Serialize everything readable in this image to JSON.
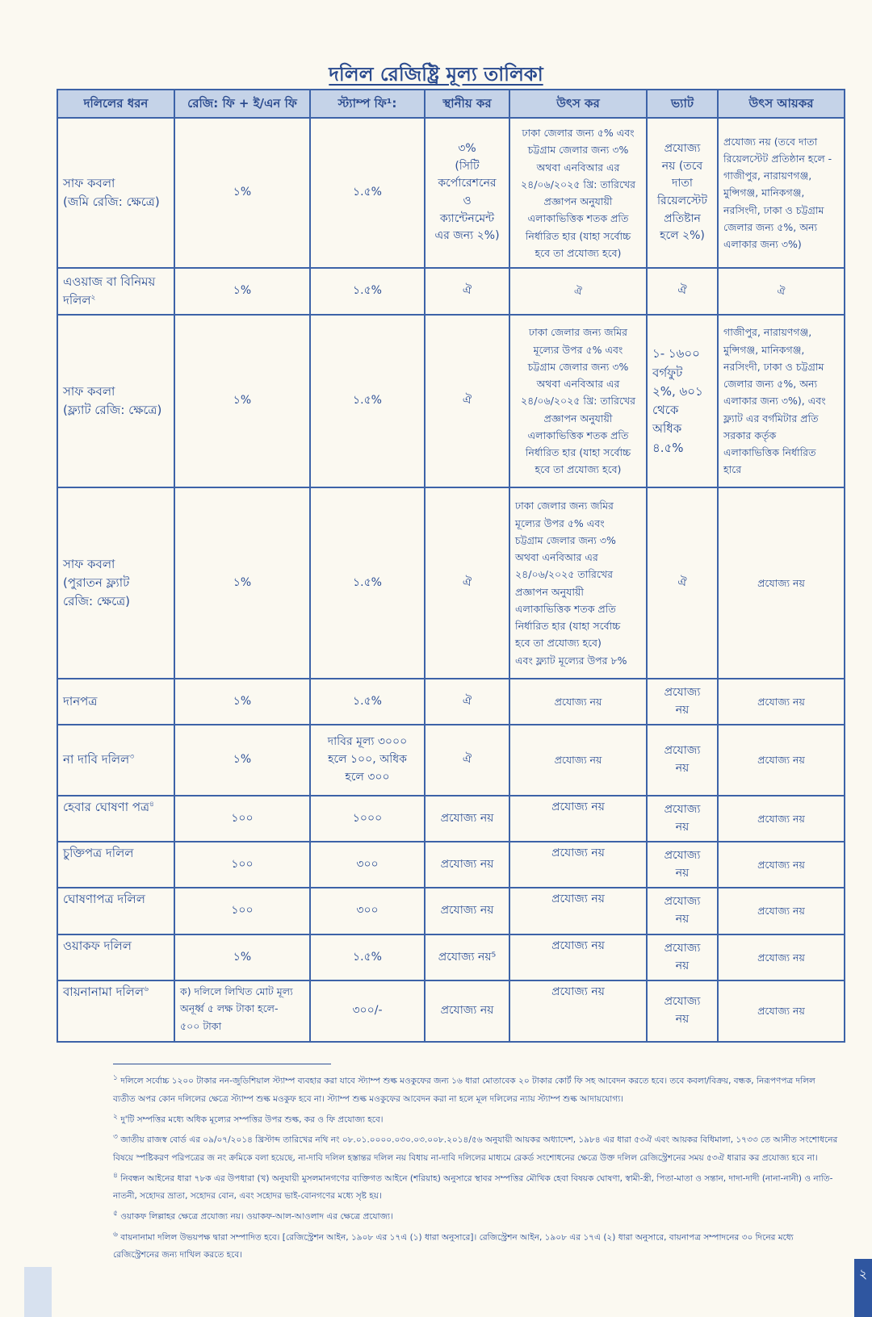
{
  "title": "দলিল রেজিষ্ট্রি মূল্য তালিকা",
  "columns": [
    "দলিলের ধরন",
    "রেজি: ফি + ই/এন ফি",
    "স্ট্যাম্প ফি¹:",
    "স্থানীয় কর",
    "উৎস কর",
    "ভ্যাট",
    "উৎস আয়কর"
  ],
  "rows": [
    {
      "type": "সাফ কবলা\n(জমি রেজি: ক্ষেত্রে)",
      "note": "",
      "reg_fee": "১%",
      "stamp": "১.৫%",
      "local_tax": "৩%\n(সিটি\nকর্পোরেশনের\nও\nক্যান্টেনমেন্ট\nএর জন্য ২%)",
      "source_tax": "ঢাকা জেলার জন্য ৫% এবং\nচট্টগ্রাম জেলার জন্য ৩%\nঅথবা এনবিআর এর\n২৪/০৬/২০২৫ খ্রি: তারিখের\nপ্রজ্ঞাপন অনুযায়ী\nএলাকাভিত্তিক শতক প্রতি\nনির্ধারিত হার (যাহা সর্বোচ্চ\nহবে তা প্রযোজ্য হবে)",
      "vat": "প্রযোজ্য\nনয় (তবে\nদাতা\nরিয়েলস্টেট\nপ্রতিষ্টান\nহলে ২%)",
      "income_tax": "প্রযোজ্য নয় (তবে দাতা\nরিয়েলস্টেট প্রতিষ্ঠান হলে -\nগাজীপুর, নারায়ণগঞ্জ,\nমুন্সিগঞ্জ, মানিকগঞ্জ,\nনরসিংদী, ঢাকা ও চট্টগ্রাম\nজেলার জন্য ৫%, অন্য\nএলাকার জন্য ৩%)"
    },
    {
      "type": "এওয়াজ বা বিনিময়\nদলিল",
      "note": "২",
      "reg_fee": "১%",
      "stamp": "১.৫%",
      "local_tax": "ঐ",
      "source_tax": "ঐ",
      "vat": "ঐ",
      "income_tax": "ঐ"
    },
    {
      "type": "সাফ কবলা\n(ফ্ল্যাট রেজি: ক্ষেত্রে)",
      "note": "",
      "reg_fee": "১%",
      "stamp": "১.৫%",
      "local_tax": "ঐ",
      "source_tax": "ঢাকা জেলার জন্য জমির\nমূল্যের উপর ৫% এবং\nচট্টগ্রাম জেলার জন্য ৩%\nঅথবা এনবিআর এর\n২৪/০৬/২০২৫ খ্রি: তারিখের\nপ্রজ্ঞাপন অনুযায়ী\nএলাকাভিত্তিক শতক প্রতি\nনির্ধারিত হার (যাহা সর্বোচ্চ\nহবে তা প্রযোজ্য হবে)",
      "vat": "১- ১৬০০\nবর্গফুট\n২%, ৬০১\nথেকে\nঅধিক\n৪.৫%",
      "income_tax": "গাজীপুর, নারায়ণগঞ্জ,\nমুন্সিগঞ্জ, মানিকগঞ্জ,\nনরসিংদী, ঢাকা ও চট্টগ্রাম\nজেলার জন্য ৫%, অন্য\nএলাকার জন্য ৩%), এবং\nফ্ল্যাট এর বর্গমিটার প্রতি\nসরকার কর্তৃক\nএলাকাভিত্তিক নির্ধারিত\nহারে"
    },
    {
      "type": "সাফ কবলা\n(পুরাতন ফ্ল্যাট\nরেজি: ক্ষেত্রে)",
      "note": "",
      "reg_fee": "১%",
      "stamp": "১.৫%",
      "local_tax": "ঐ",
      "source_tax": "ঢাকা জেলার জন্য জমির\nমূল্যের উপর ৫% এবং\nচট্টগ্রাম জেলার জন্য ৩%\nঅথবা এনবিআর এর\n২৪/০৬/২০২৫ তারিখের\nপ্রজ্ঞাপন অনুযায়ী\nএলাকাভিত্তিক শতক প্রতি\nনির্ধারিত হার (যাহা সর্বোচ্চ\nহবে তা প্রযোজ্য হবে)\nএবং ফ্ল্যাট মূল্যের উপর ৮%",
      "vat": "ঐ",
      "income_tax": "প্রযোজ্য নয়"
    },
    {
      "type": "দানপত্র",
      "note": "",
      "reg_fee": "১%",
      "stamp": "১.৫%",
      "local_tax": "ঐ",
      "source_tax": "প্রযোজ্য নয়",
      "vat": "প্রযোজ্য\nনয়",
      "income_tax": "প্রযোজ্য নয়"
    },
    {
      "type": "না দাবি দলিল",
      "note": "৩",
      "reg_fee": "১%",
      "stamp": "দাবির মূল্য ৩০০০\nহলে ১০০, অধিক\nহলে ৩০০",
      "local_tax": "ঐ",
      "source_tax": "প্রযোজ্য নয়",
      "vat": "প্রযোজ্য\nনয়",
      "income_tax": "প্রযোজ্য নয়"
    },
    {
      "type": "হেবার ঘোষণা পত্র",
      "note": "৪",
      "reg_fee": "১০০",
      "stamp": "১০০০",
      "local_tax": "প্রযোজ্য নয়",
      "source_tax": "প্রযোজ্য নয়",
      "vat": "প্রযোজ্য\nনয়",
      "income_tax": "প্রযোজ্য নয়"
    },
    {
      "type": "চুক্তিপত্র দলিল",
      "note": "",
      "reg_fee": "১০০",
      "stamp": "৩০০",
      "local_tax": "প্রযোজ্য নয়",
      "source_tax": "প্রযোজ্য নয়",
      "vat": "প্রযোজ্য\nনয়",
      "income_tax": "প্রযোজ্য নয়"
    },
    {
      "type": "ঘোষণাপত্র দলিল",
      "note": "",
      "reg_fee": "১০০",
      "stamp": "৩০০",
      "local_tax": "প্রযোজ্য নয়",
      "source_tax": "প্রযোজ্য নয়",
      "vat": "প্রযোজ্য\nনয়",
      "income_tax": "প্রযোজ্য নয়"
    },
    {
      "type": "ওয়াকফ দলিল",
      "note": "",
      "reg_fee": "১%",
      "stamp": "১.৫%",
      "local_tax": "প্রযোজ্য নয়⁵",
      "source_tax": "প্রযোজ্য নয়",
      "vat": "প্রযোজ্য\nনয়",
      "income_tax": "প্রযোজ্য নয়"
    },
    {
      "type": "বায়নানামা দলিল",
      "note": "৬",
      "reg_fee": "ক) দলিলে লিখিত মোট মূল্য\nঅনূর্ধ্ব ৫ লক্ষ টাকা হলে-\n৫০০ টাকা",
      "stamp": "৩০০/-",
      "local_tax": "প্রযোজ্য নয়",
      "source_tax": "প্রযোজ্য নয়",
      "vat": "প্রযোজ্য\nনয়",
      "income_tax": "প্রযোজ্য নয়"
    }
  ],
  "footnotes": [
    {
      "mark": "১",
      "text": "দলিলে সর্বোচ্চ ১২০০ টাকার নন-জুডিশিয়াল স্ট্যাম্প ব্যবহার করা যাবে স্ট্যাম্প শুল্ক মওকুফের জন্য ১৬ ধারা মোতাবেক ২০ টাকার কোর্ট ফি সহ আবেদন করতে হবে। তবে কবলা/বিক্রয়, বন্ধক, নিরূপণপত্র দলিল ব্যতীত অপর কোন দলিলের ক্ষেত্রে স্ট্যাম্প শুল্ক মওকুফ হবে না। স্ট্যাম্প শুল্ক মওকুফের আবেদন করা না হলে মূল দলিলের ন্যায় স্ট্যাম্প শুল্ক আদায়যোগ্য।"
    },
    {
      "mark": "২",
      "text": "দু'টি সম্পত্তির মধ্যে অধিক মূল্যের সম্পত্তির উপর শুল্ক, কর ও ফি প্রযোজ্য হবে।"
    },
    {
      "mark": "৩",
      "text": "জাতীয় রাজস্ব বোর্ড এর ০৯/০৭/২০১৪ খ্রিস্টাব্দ তারিখের নথি নং ০৮.০১.০০০০.০৩০.০৩.০০৮.২০১৪/৫৬ অনুযায়ী আয়কর অধ্যাদেশ, ১৯৮৪ এর ধারা ৫৩ঐ এবং আয়কর বিধিমালা, ১৭৩৩ তে আনীত সংশোধনের বিষয়ে স্পষ্টিকরণ পরিপত্রের জ নং ক্রমিকে বলা হয়েছে, না-দাবি দলিল হস্তান্তর দলিল নয় বিধায় না-দাবি দলিলের মাধ্যমে রেকর্ড সংশোধনের ক্ষেত্রে উক্ত দলিল রেজিস্ট্রেশনের সময় ৫৩ঐ ধারার কর প্রযোজ্য হবে না।"
    },
    {
      "mark": "৪",
      "text": "নিবন্ধন আইনের ধারা ৭৮ক এর উপধারা (খ) অনুযায়ী মুসলমানগণের ব্যক্তিগত আইনে (শরিয়াহ) অনুসারে স্থাবর সম্পত্তির মৌখিক হেবা বিষয়ক ঘোষণা, স্বামী-স্ত্রী, পিতা-মাতা ও সন্তান, দাদা-দাদী (নানা-নানী) ও নাতি-নাতনী, সহোদর ভ্রাতা, সহোদর বোন, এবং সহোদর ভাই-বোনগণের মধ্যে সৃষ্ট হয়।"
    },
    {
      "mark": "৫",
      "text": "ওয়াকফ লিল্লাহর ক্ষেত্রে প্রযোজ্য নয়। ওয়াকফ-আল-আওলাদ এর ক্ষেত্রে প্রযোজ্য।"
    },
    {
      "mark": "৬",
      "text": "বায়নানামা দলিল উভয়পক্ষ দ্বারা সম্পাদিত হবে। [রেজিস্ট্রেশন আইন, ১৯০৮ এর ১৭এ (১) ধারা অনুসারে]। রেজিস্ট্রেশন আইন, ১৯০৮ এর ১৭এ (২) ধারা অনুসারে, বায়নাপত্র সম্পাদনের ৩০ দিনের মধ্যে রেজিস্ট্রেশনের জন্য দাখিল করতে হবে।"
    }
  ],
  "page_number": "২",
  "colors": {
    "ink": "#2c4f96",
    "border": "#3d63a8",
    "header_bg": "#c5d3e8",
    "paper": "#fbf9f1",
    "tab": "#2f56a0"
  }
}
